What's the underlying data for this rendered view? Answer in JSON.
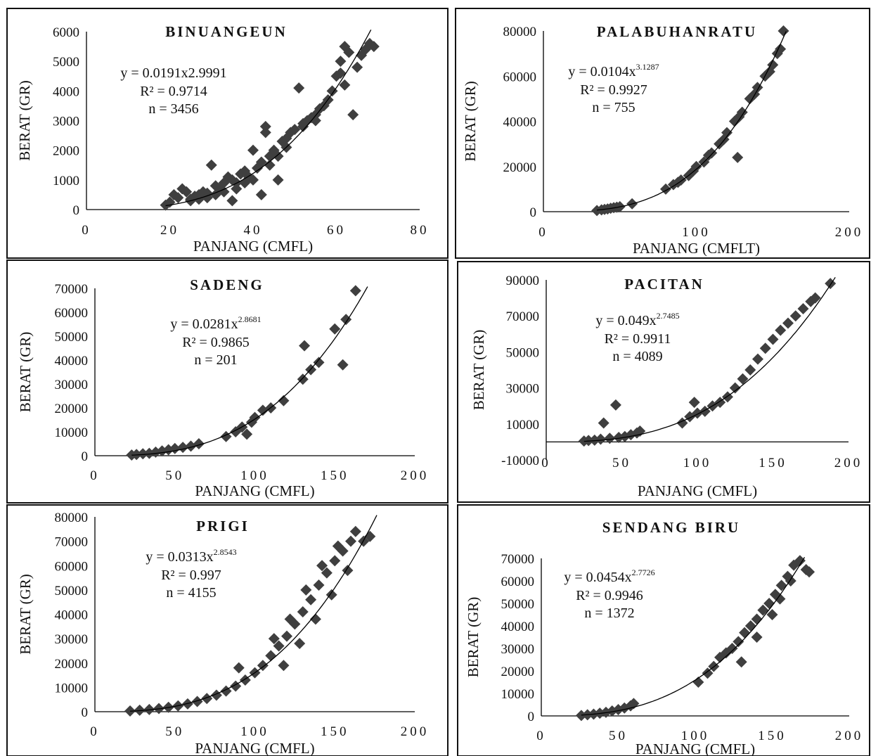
{
  "colors": {
    "marker": "#3f3f3f",
    "trend": "#000000",
    "border": "#111111",
    "axis": "#000000"
  },
  "chart_data": [
    {
      "type": "scatter",
      "title": "BINUANGEUN",
      "xlabel": "PANJANG (CMFL)",
      "ylabel": "BERAT (GR)",
      "xlim": [
        0,
        80
      ],
      "ylim": [
        0,
        6000
      ],
      "xticks": [
        0,
        20,
        40,
        60,
        80
      ],
      "yticks": [
        0,
        1000,
        2000,
        3000,
        4000,
        5000,
        6000
      ],
      "fit": {
        "a": 0.0191,
        "b": 2.9991
      },
      "equation": {
        "main": "y = 0.0191x2.9991",
        "sup": "",
        "r2": "R² = 0.9714",
        "n": "n = 3456"
      },
      "grid": false,
      "legend": "none",
      "points": [
        [
          19,
          150
        ],
        [
          20,
          250
        ],
        [
          21,
          500
        ],
        [
          22,
          400
        ],
        [
          23,
          700
        ],
        [
          24,
          600
        ],
        [
          25,
          350
        ],
        [
          26,
          450
        ],
        [
          27,
          500
        ],
        [
          28,
          600
        ],
        [
          29,
          550
        ],
        [
          30,
          1500
        ],
        [
          31,
          800
        ],
        [
          32,
          700
        ],
        [
          33,
          900
        ],
        [
          34,
          1100
        ],
        [
          35,
          300
        ],
        [
          35,
          1000
        ],
        [
          36,
          900
        ],
        [
          37,
          1200
        ],
        [
          38,
          1300
        ],
        [
          39,
          1100
        ],
        [
          40,
          2000
        ],
        [
          41,
          1400
        ],
        [
          42,
          500
        ],
        [
          42,
          1600
        ],
        [
          43,
          2600
        ],
        [
          43,
          2800
        ],
        [
          44,
          1800
        ],
        [
          45,
          2000
        ],
        [
          46,
          1000
        ],
        [
          47,
          2300
        ],
        [
          48,
          2400
        ],
        [
          49,
          2600
        ],
        [
          50,
          2700
        ],
        [
          51,
          4100
        ],
        [
          52,
          2900
        ],
        [
          53,
          3000
        ],
        [
          54,
          3100
        ],
        [
          55,
          3200
        ],
        [
          56,
          3400
        ],
        [
          57,
          3500
        ],
        [
          58,
          3700
        ],
        [
          59,
          4000
        ],
        [
          60,
          4500
        ],
        [
          61,
          5000
        ],
        [
          62,
          5500
        ],
        [
          63,
          5300
        ],
        [
          64,
          3200
        ],
        [
          65,
          4800
        ],
        [
          66,
          5200
        ],
        [
          67,
          5400
        ],
        [
          68,
          5600
        ],
        [
          69,
          5500
        ],
        [
          25,
          300
        ],
        [
          27,
          350
        ],
        [
          29,
          400
        ],
        [
          31,
          500
        ],
        [
          33,
          600
        ],
        [
          36,
          700
        ],
        [
          38,
          900
        ],
        [
          40,
          1000
        ],
        [
          44,
          1500
        ],
        [
          46,
          1800
        ],
        [
          48,
          2100
        ],
        [
          52,
          2800
        ],
        [
          55,
          3000
        ],
        [
          61,
          4600
        ],
        [
          62,
          4200
        ]
      ]
    },
    {
      "type": "scatter",
      "title": "PALABUHANRATU",
      "xlabel": "PANJANG (CMFLT)",
      "ylabel": "BERAT (GR)",
      "xlim": [
        0,
        200
      ],
      "ylim": [
        0,
        80000
      ],
      "xticks": [
        0,
        100,
        200
      ],
      "yticks": [
        0,
        20000,
        40000,
        60000,
        80000
      ],
      "fit": {
        "a": 0.0104,
        "b": 3.1287
      },
      "equation": {
        "main": "y = 0.0104x",
        "sup": "3.1287",
        "r2": "R² = 0.9927",
        "n": "n = 755"
      },
      "grid": false,
      "legend": "none",
      "points": [
        [
          35,
          500
        ],
        [
          38,
          800
        ],
        [
          40,
          1000
        ],
        [
          42,
          1200
        ],
        [
          44,
          1500
        ],
        [
          46,
          1800
        ],
        [
          48,
          2000
        ],
        [
          50,
          2200
        ],
        [
          58,
          3500
        ],
        [
          80,
          10000
        ],
        [
          85,
          12000
        ],
        [
          90,
          14000
        ],
        [
          95,
          16000
        ],
        [
          100,
          20000
        ],
        [
          105,
          22000
        ],
        [
          110,
          26000
        ],
        [
          115,
          30000
        ],
        [
          120,
          35000
        ],
        [
          125,
          40000
        ],
        [
          127,
          24000
        ],
        [
          130,
          44000
        ],
        [
          135,
          50000
        ],
        [
          140,
          55000
        ],
        [
          145,
          60000
        ],
        [
          150,
          65000
        ],
        [
          153,
          70000
        ],
        [
          155,
          72000
        ],
        [
          157,
          80000
        ],
        [
          88,
          13000
        ],
        [
          98,
          18000
        ],
        [
          108,
          25000
        ],
        [
          118,
          32000
        ],
        [
          128,
          42000
        ],
        [
          138,
          52000
        ],
        [
          148,
          62000
        ]
      ]
    },
    {
      "type": "scatter",
      "title": "SADENG",
      "xlabel": "PANJANG (CMFL)",
      "ylabel": "BERAT (GR)",
      "xlim": [
        0,
        200
      ],
      "ylim": [
        0,
        70000
      ],
      "xticks": [
        0,
        50,
        100,
        150,
        200
      ],
      "yticks": [
        0,
        10000,
        20000,
        30000,
        40000,
        50000,
        60000,
        70000
      ],
      "fit": {
        "a": 0.0281,
        "b": 2.8681
      },
      "equation": {
        "main": "y = 0.0281x",
        "sup": "2.8681",
        "r2": "R² = 0.9865",
        "n": "n = 201"
      },
      "grid": false,
      "legend": "none",
      "points": [
        [
          23,
          300
        ],
        [
          26,
          500
        ],
        [
          30,
          800
        ],
        [
          34,
          1000
        ],
        [
          38,
          1500
        ],
        [
          42,
          2000
        ],
        [
          46,
          2500
        ],
        [
          50,
          3000
        ],
        [
          55,
          3500
        ],
        [
          60,
          4000
        ],
        [
          65,
          5000
        ],
        [
          82,
          8000
        ],
        [
          88,
          10000
        ],
        [
          92,
          12000
        ],
        [
          95,
          9000
        ],
        [
          98,
          14000
        ],
        [
          100,
          16000
        ],
        [
          105,
          19000
        ],
        [
          110,
          20000
        ],
        [
          118,
          23000
        ],
        [
          130,
          32000
        ],
        [
          131,
          46000
        ],
        [
          135,
          36000
        ],
        [
          140,
          39000
        ],
        [
          150,
          53000
        ],
        [
          155,
          38000
        ],
        [
          157,
          57000
        ],
        [
          163,
          69000
        ]
      ]
    },
    {
      "type": "scatter",
      "title": "PACITAN",
      "xlabel": "PANJANG (CMFL)",
      "ylabel": "BERAT (GR)",
      "xlim": [
        0,
        200
      ],
      "ylim": [
        -10000,
        90000
      ],
      "xticks": [
        0,
        50,
        100,
        150,
        200
      ],
      "yticks": [
        -10000,
        10000,
        30000,
        50000,
        70000,
        90000
      ],
      "fit": {
        "a": 0.049,
        "b": 2.7485
      },
      "equation": {
        "main": "y = 0.049x",
        "sup": "2.7485",
        "r2": "R² = 0.9911",
        "n": "n = 4089"
      },
      "grid": false,
      "legend": "none",
      "points": [
        [
          25,
          500
        ],
        [
          28,
          800
        ],
        [
          32,
          1000
        ],
        [
          36,
          1500
        ],
        [
          38,
          10500
        ],
        [
          42,
          2000
        ],
        [
          46,
          20500
        ],
        [
          48,
          2500
        ],
        [
          52,
          3000
        ],
        [
          56,
          4000
        ],
        [
          60,
          5000
        ],
        [
          62,
          6000
        ],
        [
          90,
          10500
        ],
        [
          95,
          14000
        ],
        [
          98,
          22000
        ],
        [
          100,
          16000
        ],
        [
          105,
          17000
        ],
        [
          110,
          20000
        ],
        [
          115,
          22000
        ],
        [
          120,
          25000
        ],
        [
          125,
          30000
        ],
        [
          130,
          35000
        ],
        [
          135,
          40000
        ],
        [
          140,
          46000
        ],
        [
          145,
          52000
        ],
        [
          150,
          57000
        ],
        [
          155,
          62000
        ],
        [
          160,
          66000
        ],
        [
          165,
          70000
        ],
        [
          170,
          74000
        ],
        [
          175,
          78000
        ],
        [
          178,
          80000
        ],
        [
          188,
          88000
        ]
      ]
    },
    {
      "type": "scatter",
      "title": "PRIGI",
      "xlabel": "PANJANG (CMFL)",
      "ylabel": "BERAT (GR)",
      "xlim": [
        0,
        200
      ],
      "ylim": [
        0,
        80000
      ],
      "xticks": [
        0,
        50,
        100,
        150,
        200
      ],
      "yticks": [
        0,
        10000,
        20000,
        30000,
        40000,
        50000,
        60000,
        70000,
        80000
      ],
      "fit": {
        "a": 0.0313,
        "b": 2.8543
      },
      "equation": {
        "main": "y = 0.0313x",
        "sup": "2.8543",
        "r2": "R² = 0.997",
        "n": "n = 4155"
      },
      "grid": false,
      "legend": "none",
      "points": [
        [
          22,
          300
        ],
        [
          28,
          600
        ],
        [
          34,
          900
        ],
        [
          40,
          1300
        ],
        [
          46,
          1800
        ],
        [
          52,
          2400
        ],
        [
          58,
          3200
        ],
        [
          64,
          4200
        ],
        [
          70,
          5400
        ],
        [
          76,
          6800
        ],
        [
          82,
          8500
        ],
        [
          88,
          10500
        ],
        [
          90,
          18000
        ],
        [
          94,
          13000
        ],
        [
          100,
          16000
        ],
        [
          105,
          19000
        ],
        [
          110,
          23000
        ],
        [
          115,
          27000
        ],
        [
          120,
          31000
        ],
        [
          125,
          36000
        ],
        [
          130,
          41000
        ],
        [
          135,
          46000
        ],
        [
          140,
          52000
        ],
        [
          145,
          57000
        ],
        [
          150,
          62000
        ],
        [
          155,
          66000
        ],
        [
          160,
          70000
        ],
        [
          163,
          74000
        ],
        [
          168,
          70000
        ],
        [
          172,
          72000
        ],
        [
          118,
          19000
        ],
        [
          128,
          28000
        ],
        [
          138,
          38000
        ],
        [
          148,
          48000
        ],
        [
          158,
          58000
        ],
        [
          112,
          30000
        ],
        [
          122,
          38000
        ],
        [
          132,
          50000
        ],
        [
          142,
          60000
        ],
        [
          152,
          68000
        ]
      ]
    },
    {
      "type": "scatter",
      "title": "SENDANG BIRU",
      "xlabel": "PANJANG (CMFL)",
      "ylabel": "BERAT (GR)",
      "xlim": [
        0,
        200
      ],
      "ylim": [
        0,
        70000
      ],
      "xticks": [
        0,
        50,
        100,
        150,
        200
      ],
      "yticks": [
        0,
        10000,
        20000,
        30000,
        40000,
        50000,
        60000,
        70000
      ],
      "fit": {
        "a": 0.0454,
        "b": 2.7726
      },
      "equation": {
        "main": "y = 0.0454x",
        "sup": "2.7726",
        "r2": "R² = 0.9946",
        "n": "n = 1372"
      },
      "grid": false,
      "legend": "none",
      "points": [
        [
          26,
          200
        ],
        [
          30,
          500
        ],
        [
          34,
          800
        ],
        [
          38,
          1200
        ],
        [
          42,
          1600
        ],
        [
          46,
          2200
        ],
        [
          50,
          2800
        ],
        [
          54,
          3500
        ],
        [
          58,
          4500
        ],
        [
          60,
          5500
        ],
        [
          102,
          15000
        ],
        [
          108,
          19000
        ],
        [
          112,
          22000
        ],
        [
          116,
          26000
        ],
        [
          120,
          28000
        ],
        [
          124,
          30000
        ],
        [
          128,
          33000
        ],
        [
          132,
          37000
        ],
        [
          136,
          40000
        ],
        [
          140,
          43000
        ],
        [
          144,
          47000
        ],
        [
          148,
          50000
        ],
        [
          152,
          54000
        ],
        [
          156,
          58000
        ],
        [
          160,
          62000
        ],
        [
          164,
          67000
        ],
        [
          168,
          69000
        ],
        [
          172,
          65000
        ],
        [
          174,
          64000
        ],
        [
          130,
          24000
        ],
        [
          140,
          35000
        ],
        [
          150,
          45000
        ],
        [
          155,
          52000
        ],
        [
          162,
          60000
        ]
      ]
    }
  ]
}
